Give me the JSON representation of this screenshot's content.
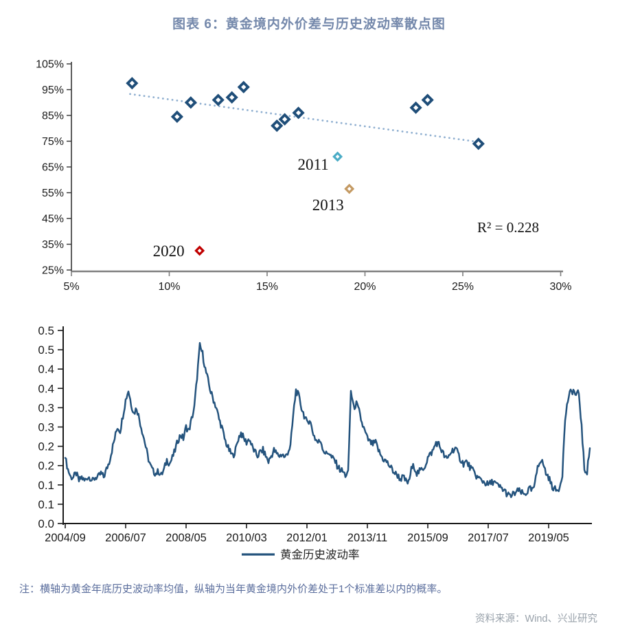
{
  "title": "图表 6：黄金境内外价差与历史波动率散点图",
  "note": "注：横轴为黄金年底历史波动率均值，纵轴为当年黄金境内外价差处于1个标准差以内的概率。",
  "source": "资料来源：Wind、兴业研究",
  "chart_data": [
    {
      "type": "scatter",
      "title": "黄金境内外价差与历史波动率散点图",
      "xlim": [
        5,
        30
      ],
      "ylim": [
        25,
        105
      ],
      "x_ticks": [
        "5%",
        "10%",
        "15%",
        "20%",
        "25%",
        "30%"
      ],
      "y_ticks": [
        "25%",
        "35%",
        "45%",
        "55%",
        "65%",
        "75%",
        "85%",
        "95%",
        "105%"
      ],
      "points": [
        {
          "x": 8.1,
          "y": 97.5
        },
        {
          "x": 10.4,
          "y": 84.5
        },
        {
          "x": 11.1,
          "y": 90.0
        },
        {
          "x": 12.5,
          "y": 91.0
        },
        {
          "x": 13.2,
          "y": 92.0
        },
        {
          "x": 13.8,
          "y": 96.0
        },
        {
          "x": 15.5,
          "y": 81.0
        },
        {
          "x": 15.9,
          "y": 83.5
        },
        {
          "x": 16.6,
          "y": 86.0
        },
        {
          "x": 22.6,
          "y": 88.0
        },
        {
          "x": 23.2,
          "y": 91.0
        },
        {
          "x": 25.8,
          "y": 74.0
        }
      ],
      "highlight_points": [
        {
          "year": "2011",
          "x": 18.6,
          "y": 69.0,
          "color": "#4BACC6"
        },
        {
          "year": "2013",
          "x": 19.2,
          "y": 56.5,
          "color": "#C49A63"
        },
        {
          "year": "2020",
          "x": 11.55,
          "y": 32.5,
          "color": "#C00000"
        }
      ],
      "trendline": {
        "x1": 8.0,
        "y1": 93.3,
        "x2": 26.0,
        "y2": 74.5
      },
      "r2_label": "R² = 0.228",
      "point_color": "#1F4E79",
      "trend_color": "#8FAFD0"
    },
    {
      "type": "line",
      "ylim": [
        0,
        0.5
      ],
      "y_ticks": [
        "0.0",
        "0.1",
        "0.1",
        "0.2",
        "0.2",
        "0.3",
        "0.3",
        "0.4",
        "0.4",
        "0.5",
        "0.5"
      ],
      "x_ticks": [
        "2004/09",
        "2006/07",
        "2008/05",
        "2010/03",
        "2012/01",
        "2013/11",
        "2015/09",
        "2017/07",
        "2019/05"
      ],
      "x_tick_interval_months": 22,
      "legend": {
        "label": "黄金历史波动率"
      },
      "series": [
        {
          "name": "黄金历史波动率",
          "color": "#24537D",
          "start": "2004/09",
          "step_months": 1,
          "values": [
            0.17,
            0.14,
            0.12,
            0.12,
            0.13,
            0.11,
            0.12,
            0.11,
            0.12,
            0.12,
            0.11,
            0.12,
            0.12,
            0.13,
            0.12,
            0.14,
            0.16,
            0.19,
            0.22,
            0.25,
            0.24,
            0.28,
            0.32,
            0.345,
            0.31,
            0.285,
            0.3,
            0.27,
            0.24,
            0.21,
            0.175,
            0.15,
            0.135,
            0.13,
            0.135,
            0.125,
            0.14,
            0.165,
            0.155,
            0.17,
            0.19,
            0.215,
            0.23,
            0.22,
            0.25,
            0.24,
            0.27,
            0.3,
            0.38,
            0.46,
            0.44,
            0.4,
            0.37,
            0.34,
            0.32,
            0.3,
            0.27,
            0.25,
            0.22,
            0.2,
            0.185,
            0.175,
            0.19,
            0.22,
            0.235,
            0.22,
            0.21,
            0.22,
            0.2,
            0.185,
            0.175,
            0.185,
            0.19,
            0.175,
            0.16,
            0.175,
            0.19,
            0.18,
            0.175,
            0.18,
            0.17,
            0.185,
            0.2,
            0.28,
            0.345,
            0.33,
            0.3,
            0.28,
            0.26,
            0.27,
            0.24,
            0.22,
            0.21,
            0.215,
            0.19,
            0.18,
            0.185,
            0.17,
            0.165,
            0.15,
            0.14,
            0.135,
            0.125,
            0.13,
            0.345,
            0.3,
            0.31,
            0.29,
            0.26,
            0.24,
            0.22,
            0.21,
            0.205,
            0.21,
            0.19,
            0.175,
            0.165,
            0.16,
            0.15,
            0.14,
            0.13,
            0.125,
            0.115,
            0.12,
            0.11,
            0.105,
            0.14,
            0.15,
            0.13,
            0.135,
            0.14,
            0.15,
            0.17,
            0.18,
            0.19,
            0.21,
            0.205,
            0.19,
            0.175,
            0.165,
            0.18,
            0.19,
            0.195,
            0.18,
            0.165,
            0.155,
            0.16,
            0.15,
            0.14,
            0.13,
            0.12,
            0.115,
            0.11,
            0.105,
            0.1,
            0.105,
            0.11,
            0.1,
            0.095,
            0.09,
            0.085,
            0.075,
            0.07,
            0.075,
            0.08,
            0.085,
            0.08,
            0.075,
            0.08,
            0.09,
            0.085,
            0.1,
            0.15,
            0.165,
            0.155,
            0.13,
            0.12,
            0.1,
            0.09,
            0.085,
            0.095,
            0.13,
            0.27,
            0.32,
            0.34,
            0.345,
            0.33,
            0.34,
            0.25,
            0.14,
            0.135,
            0.195
          ]
        }
      ]
    }
  ]
}
